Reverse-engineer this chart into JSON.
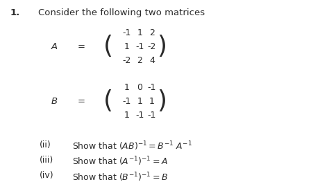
{
  "title_number": "1.",
  "title_text": "Consider the following two matrices",
  "matrix_A_label": "A",
  "matrix_B_label": "B",
  "matrix_A_rows": [
    [
      "-1",
      "1",
      "2"
    ],
    [
      "1",
      "-1",
      "-2"
    ],
    [
      "-2",
      "2",
      "4"
    ]
  ],
  "matrix_B_rows": [
    [
      "1",
      "0",
      "-1"
    ],
    [
      "-1",
      "1",
      "1"
    ],
    [
      "1",
      "-1",
      "-1"
    ]
  ],
  "parts": [
    {
      "label": "(ii)",
      "text_plain": "Show that (AB)",
      "text_sup1": "-1",
      "text_mid": " = B",
      "text_sup2": "-1",
      "text_mid2": " A",
      "text_sup3": "-1",
      "text_end": ""
    },
    {
      "label": "(iii)",
      "text_plain": "Show that (A",
      "text_sup1": "-1",
      "text_mid": ")",
      "text_sup2": "-1",
      "text_mid2": " = A",
      "text_sup3": "",
      "text_end": ""
    },
    {
      "label": "(iv)",
      "text_plain": "Show that (B",
      "text_sup1": "-1",
      "text_mid": ")",
      "text_sup2": "-1",
      "text_mid2": " = B",
      "text_sup3": "",
      "text_end": ""
    }
  ],
  "bg_color": "#ffffff",
  "text_color": "#2a2a2a",
  "fontsize_title": 9.5,
  "fontsize_label": 9.5,
  "fontsize_matrix": 9.0,
  "fontsize_parts": 9.0,
  "fontsize_paren": 26
}
